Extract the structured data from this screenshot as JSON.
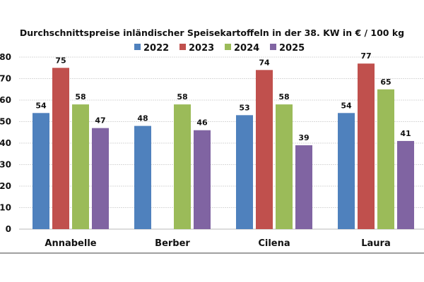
{
  "chart_data": {
    "type": "bar",
    "title": "Durchschnittspreise inländischer Speisekartoffeln in der 38. KW in € / 100 kg",
    "xlabel": "",
    "ylabel": "",
    "ylim": [
      0,
      80
    ],
    "yticks": [
      0,
      10,
      20,
      30,
      40,
      50,
      60,
      70,
      80
    ],
    "grid": true,
    "legend_position": "top-center",
    "categories": [
      "Annabelle",
      "Berber",
      "Cilena",
      "Laura"
    ],
    "series": [
      {
        "name": "2022",
        "color": "#4f81bd",
        "values": [
          54,
          48,
          53,
          54
        ]
      },
      {
        "name": "2023",
        "color": "#c0504d",
        "values": [
          75,
          null,
          74,
          77
        ]
      },
      {
        "name": "2024",
        "color": "#9bbb59",
        "values": [
          58,
          58,
          58,
          65
        ]
      },
      {
        "name": "2025",
        "color": "#8064a2",
        "values": [
          47,
          46,
          39,
          41
        ]
      }
    ],
    "data_labels": true
  }
}
